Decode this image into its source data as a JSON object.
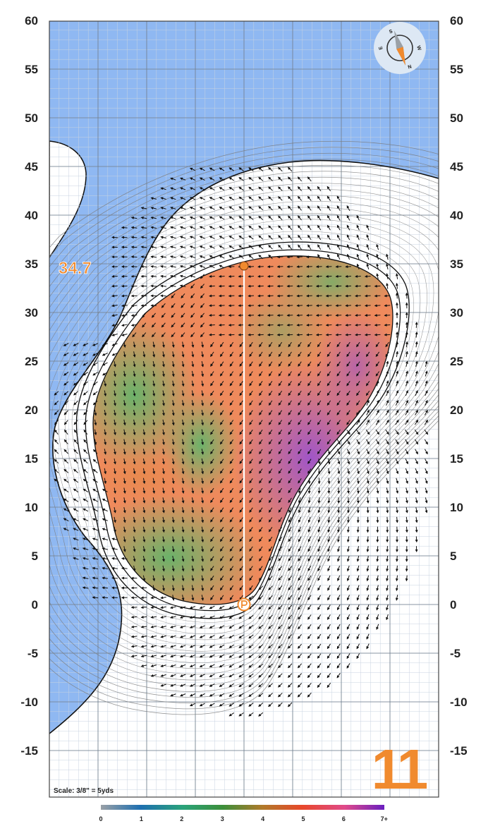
{
  "hole": {
    "number": "11",
    "pin_depth": "34.7",
    "scale": "Scale: 3/8\" = 5yds"
  },
  "compass": {
    "letters": [
      "S",
      "W",
      "N",
      "E"
    ]
  },
  "axes": {
    "y_ticks": [
      "60",
      "55",
      "50",
      "45",
      "40",
      "35",
      "30",
      "25",
      "20",
      "15",
      "10",
      "5",
      "0",
      "-5",
      "-10",
      "-15"
    ]
  },
  "legend": {
    "labels": [
      "0",
      "1",
      "2",
      "3",
      "4",
      "5",
      "6",
      "7+"
    ]
  },
  "colors": {
    "water": "#8fb8f2",
    "accent": "#f08a2e",
    "green_low": "#6cb26a",
    "slope_mid": "#ef8a5c",
    "slope_high": "#a55cc4"
  }
}
